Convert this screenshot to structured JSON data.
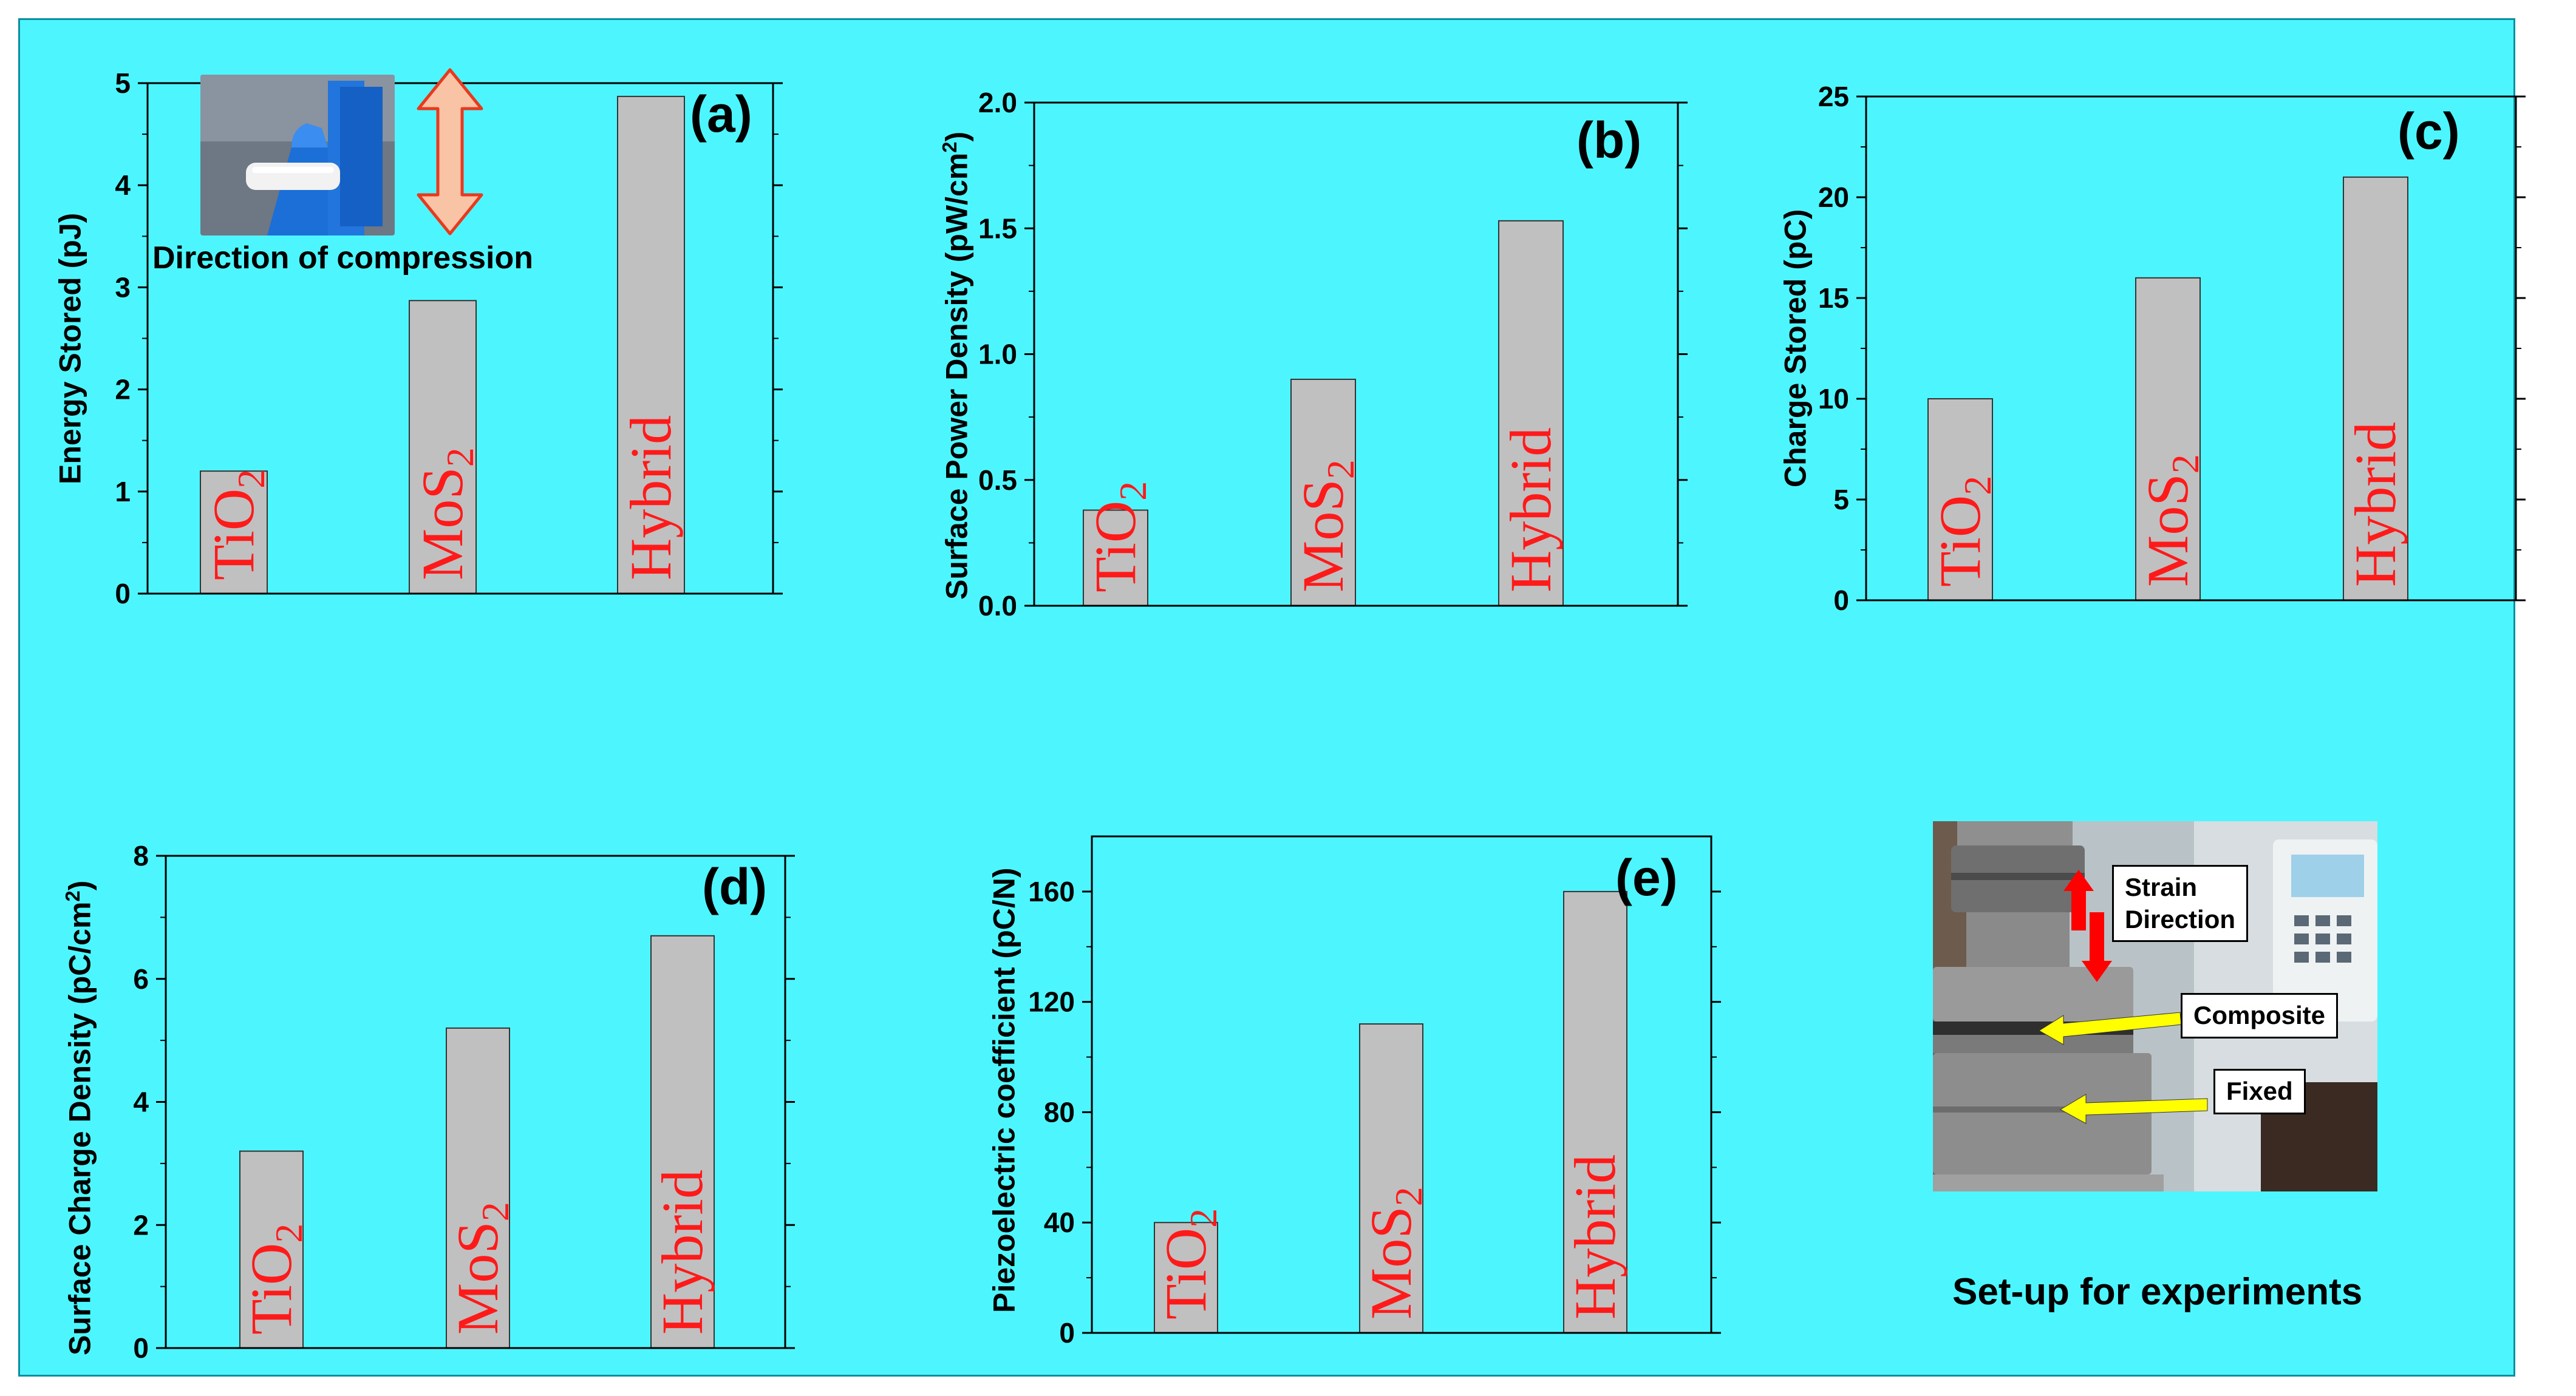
{
  "chart_data": [
    {
      "type": "bar",
      "panel": "(a)",
      "categories": [
        {
          "base": "TiO",
          "sub": "2"
        },
        {
          "base": "MoS",
          "sub": "2"
        },
        {
          "base": "Hybrid",
          "sub": ""
        }
      ],
      "values": [
        1.2,
        2.87,
        4.87
      ],
      "ylabel": "Energy Stored (pJ)",
      "ylabel_sup": "",
      "ylabel_tail": "",
      "ylim": [
        0,
        5
      ],
      "yticks": [
        0,
        1,
        2,
        3,
        4,
        5
      ],
      "tick_format": "int"
    },
    {
      "type": "bar",
      "panel": "(b)",
      "categories": [
        {
          "base": "TiO",
          "sub": "2"
        },
        {
          "base": "MoS",
          "sub": "2"
        },
        {
          "base": "Hybrid",
          "sub": ""
        }
      ],
      "values": [
        0.38,
        0.9,
        1.53
      ],
      "ylabel": "Surface  Power Density (pW/cm",
      "ylabel_sup": "2",
      "ylabel_tail": ")",
      "ylim": [
        0,
        2.0
      ],
      "yticks": [
        0.0,
        0.5,
        1.0,
        1.5,
        2.0
      ],
      "tick_format": "1dp"
    },
    {
      "type": "bar",
      "panel": "(c)",
      "categories": [
        {
          "base": "TiO",
          "sub": "2"
        },
        {
          "base": "MoS",
          "sub": "2"
        },
        {
          "base": "Hybrid",
          "sub": ""
        }
      ],
      "values": [
        10,
        16,
        21
      ],
      "ylabel": "Charge Stored (pC)",
      "ylabel_sup": "",
      "ylabel_tail": "",
      "ylim": [
        0,
        25
      ],
      "yticks": [
        0,
        5,
        10,
        15,
        20,
        25
      ],
      "tick_format": "int"
    },
    {
      "type": "bar",
      "panel": "(d)",
      "categories": [
        {
          "base": "TiO",
          "sub": "2"
        },
        {
          "base": "MoS",
          "sub": "2"
        },
        {
          "base": "Hybrid",
          "sub": ""
        }
      ],
      "values": [
        3.2,
        5.2,
        6.7
      ],
      "ylabel": "Surface Charge Density (pC/cm",
      "ylabel_sup": "2",
      "ylabel_tail": ")",
      "ylim": [
        0,
        8
      ],
      "yticks": [
        0,
        2,
        4,
        6,
        8
      ],
      "tick_format": "int"
    },
    {
      "type": "bar",
      "panel": "(e)",
      "categories": [
        {
          "base": "TiO",
          "sub": "2"
        },
        {
          "base": "MoS",
          "sub": "2"
        },
        {
          "base": "Hybrid",
          "sub": ""
        }
      ],
      "values": [
        40,
        112,
        160
      ],
      "ylabel": "Piezoelectric coefficient (pC/N)",
      "ylabel_sup": "",
      "ylabel_tail": "",
      "ylim": [
        0,
        180
      ],
      "yticks": [
        0,
        40,
        80,
        120,
        160
      ],
      "tick_format": "int"
    }
  ],
  "inset_a": {
    "caption": "Direction of compression"
  },
  "setup": {
    "caption": "Set-up for experiments",
    "labels": {
      "strain": [
        "Strain",
        "Direction"
      ],
      "composite": "Composite",
      "fixed": "Fixed"
    }
  },
  "colors": {
    "background": "#4df6ff",
    "bar_fill": "#c0c0c0",
    "bar_label": "#ff1a1a",
    "arrow_fill": "#f9c3a5",
    "arrow_stroke": "#e8391e",
    "yellow_arrow": "#ffff00",
    "red_arrow": "#ff0000"
  }
}
